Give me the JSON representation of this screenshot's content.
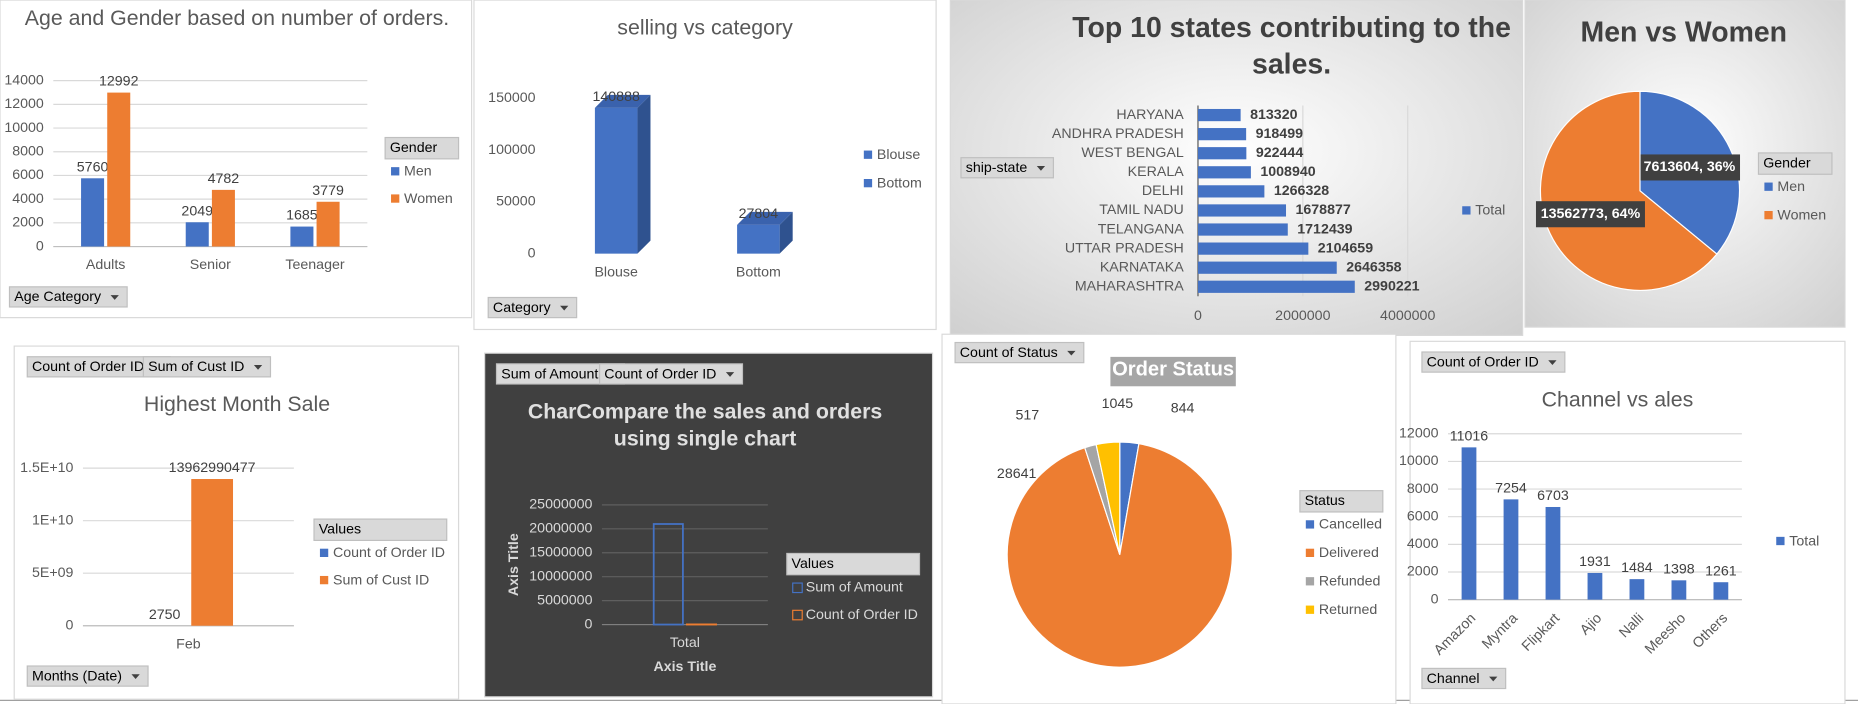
{
  "chart_data": [
    {
      "type": "bar",
      "title": "Age and Gender based on number of orders.",
      "categories": [
        "Adults",
        "Senior",
        "Teenager"
      ],
      "series": [
        {
          "name": "Men",
          "color": "#4472c4",
          "values": [
            5760,
            2049,
            1685
          ]
        },
        {
          "name": "Women",
          "color": "#ed7d31",
          "values": [
            12992,
            4782,
            3779
          ]
        }
      ],
      "ylim": [
        0,
        14000
      ],
      "yticks": [
        0,
        2000,
        4000,
        6000,
        8000,
        10000,
        12000,
        14000
      ],
      "grid": true,
      "data_labels": true,
      "legend_title": "Gender",
      "field_buttons": [
        "Age Category"
      ]
    },
    {
      "type": "bar",
      "3d": true,
      "title": "selling vs category",
      "categories": [
        "Blouse",
        "Bottom"
      ],
      "values": [
        140888,
        27804
      ],
      "colors": [
        "#4472c4",
        "#4472c4"
      ],
      "ylim": [
        0,
        150000
      ],
      "yticks": [
        0,
        50000,
        100000,
        150000
      ],
      "grid": false,
      "data_labels": true,
      "field_buttons": [
        "Category"
      ]
    },
    {
      "type": "bar",
      "orientation": "horizontal",
      "title": "Top 10 states contributing to the sales.",
      "categories": [
        "HARYANA",
        "ANDHRA PRADESH",
        "WEST BENGAL",
        "KERALA",
        "DELHI",
        "TAMIL NADU",
        "TELANGANA",
        "UTTAR PRADESH",
        "KARNATAKA",
        "MAHARASHTRA"
      ],
      "series": [
        {
          "name": "Total",
          "color": "#4472c4",
          "values": [
            813320,
            918499,
            922444,
            1008940,
            1266328,
            1678877,
            1712439,
            2104659,
            2646358,
            2990221
          ]
        }
      ],
      "xlim": [
        0,
        4000000
      ],
      "xticks": [
        0,
        2000000,
        4000000
      ],
      "grid": true,
      "data_labels": true,
      "field_buttons": [
        "ship-state"
      ]
    },
    {
      "type": "pie",
      "title": "Men vs Women",
      "categories": [
        "Men",
        "Women"
      ],
      "values": [
        7613604,
        13562773
      ],
      "value_labels": [
        "7613604, 36%",
        "13562773, 64%"
      ],
      "colors": [
        "#4472c4",
        "#ed7d31"
      ],
      "data_labels": true,
      "legend_title": "Gender"
    },
    {
      "type": "bar",
      "title": "Highest Month Sale",
      "categories": [
        "Feb"
      ],
      "series": [
        {
          "name": "Count of Order ID",
          "color": "#4472c4",
          "values": [
            2750
          ]
        },
        {
          "name": "Sum of Cust ID",
          "color": "#ed7d31",
          "values": [
            13962990477
          ]
        }
      ],
      "ylim": [
        0,
        15000000000
      ],
      "yticks": [
        0,
        {
          "value": 5000000000,
          "label": "5E+09"
        },
        {
          "value": 10000000000,
          "label": "1E+10"
        },
        {
          "value": 15000000000,
          "label": "1.5E+10"
        }
      ],
      "grid": true,
      "data_labels": true,
      "legend_title": "Values",
      "field_buttons": [
        "Count of Order ID",
        "Sum of Cust ID",
        "Months (Date)"
      ]
    },
    {
      "type": "bar",
      "title": "CharCompare the sales and orders using single chart",
      "categories": [
        "Total"
      ],
      "series": [
        {
          "name": "Sum of Amount",
          "color": "#4472c4",
          "outline": true,
          "values": [
            21000000
          ]
        },
        {
          "name": "Count of Order ID",
          "color": "#ed7d31",
          "outline": true,
          "values": [
            31047
          ]
        }
      ],
      "xlabel": "Axis Title",
      "ylabel": "Axis Title",
      "ylim": [
        0,
        25000000
      ],
      "yticks": [
        0,
        5000000,
        10000000,
        15000000,
        20000000,
        25000000
      ],
      "grid": true,
      "data_labels": false,
      "legend_title": "Values",
      "field_buttons": [
        "Sum of Amount",
        "Count of Order ID"
      ]
    },
    {
      "type": "pie",
      "title": "Order Status",
      "categories": [
        "Cancelled",
        "Delivered",
        "Refunded",
        "Returned"
      ],
      "values": [
        844,
        28641,
        517,
        1045
      ],
      "colors": [
        "#4472c4",
        "#ed7d31",
        "#a5a5a5",
        "#ffc000"
      ],
      "data_labels": true,
      "legend_title": "Status",
      "field_buttons": [
        "Count of Status"
      ]
    },
    {
      "type": "bar",
      "title": "Channel vs ales",
      "categories": [
        "Amazon",
        "Myntra",
        "Flipkart",
        "Ajio",
        "Nalli",
        "Meesho",
        "Others"
      ],
      "series": [
        {
          "name": "Total",
          "color": "#4472c4",
          "values": [
            11016,
            7254,
            6703,
            1931,
            1484,
            1398,
            1261
          ]
        }
      ],
      "ylim": [
        0,
        12000
      ],
      "yticks": [
        0,
        2000,
        4000,
        6000,
        8000,
        10000,
        12000
      ],
      "grid": true,
      "data_labels": true,
      "field_buttons": [
        "Count of Order ID",
        "Channel"
      ]
    }
  ]
}
